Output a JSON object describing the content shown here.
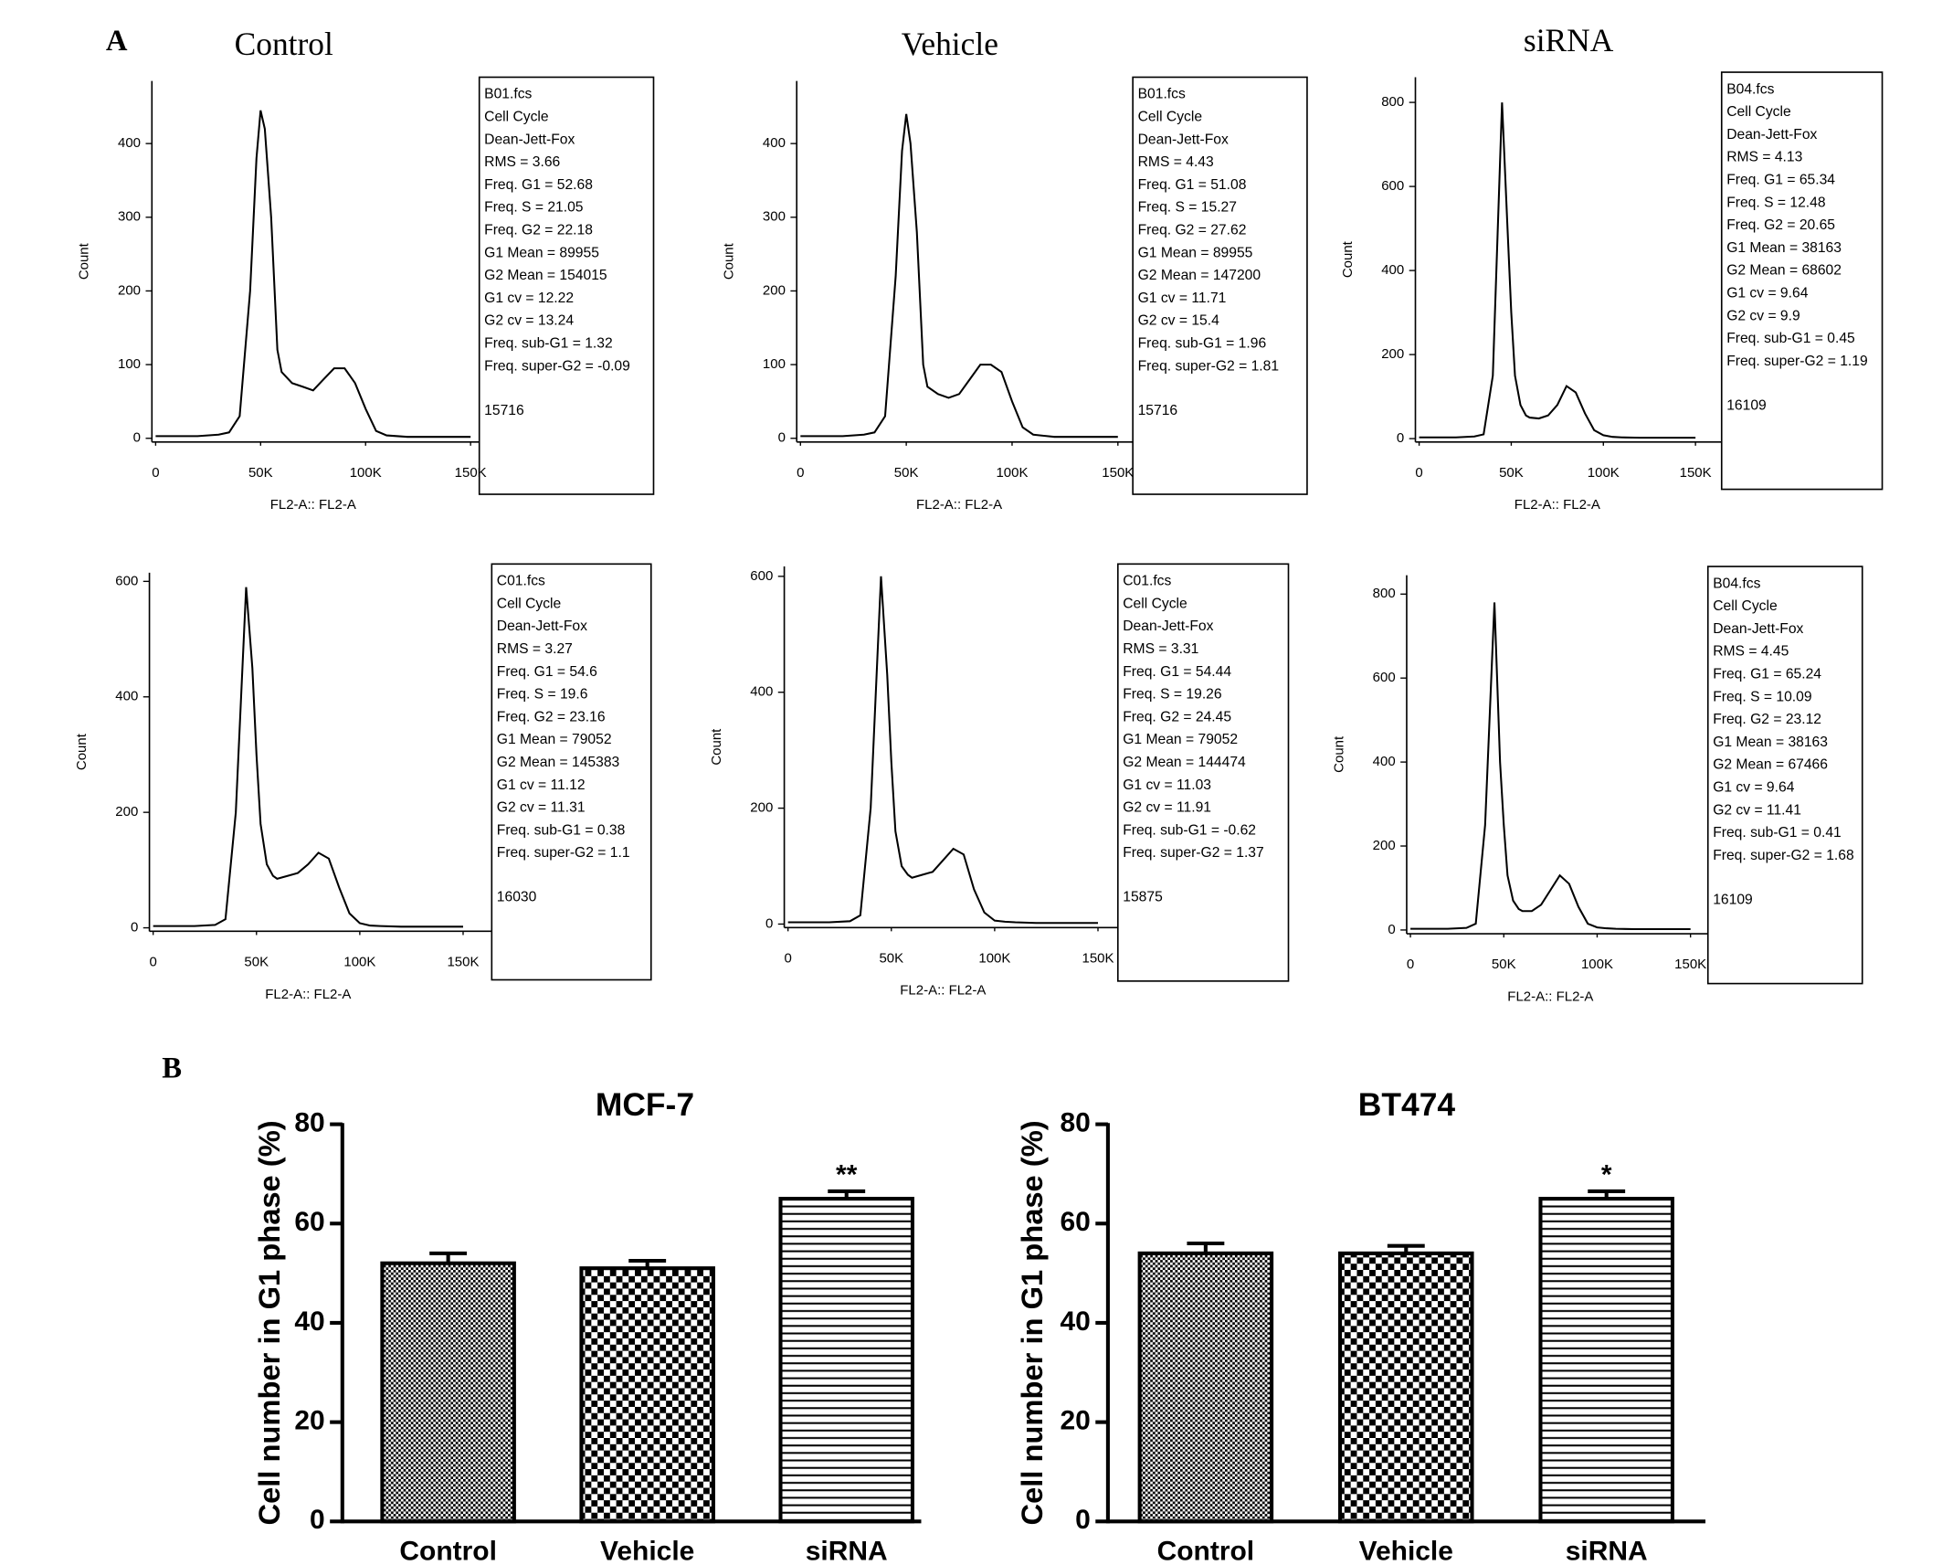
{
  "figure_labels": [
    "A",
    "B"
  ],
  "chart_data": [
    {
      "type": "line",
      "title": "Control",
      "xlabel": "FL2-A:: FL2-A",
      "ylabel": "Count",
      "x": [
        0,
        10000,
        20000,
        30000,
        35000,
        40000,
        45000,
        48000,
        50000,
        52000,
        55000,
        58000,
        60000,
        65000,
        70000,
        75000,
        80000,
        85000,
        90000,
        95000,
        100000,
        105000,
        110000,
        120000,
        130000,
        150000
      ],
      "series": [
        {
          "color": "#000000",
          "values": [
            3,
            3,
            3,
            5,
            8,
            30,
            200,
            380,
            445,
            420,
            300,
            120,
            90,
            75,
            70,
            65,
            80,
            95,
            95,
            75,
            40,
            10,
            4,
            2,
            2,
            2
          ]
        }
      ],
      "xlim": [
        0,
        150000
      ],
      "xticks": [
        0,
        {
          "value": 50000,
          "label": "50K"
        },
        {
          "value": 100000,
          "label": "100K"
        },
        {
          "value": 150000,
          "label": "150K"
        }
      ],
      "ylim": [
        -5,
        485
      ],
      "yticks": [
        0,
        100,
        200,
        300,
        400
      ],
      "annotations": [
        "B01.fcs",
        "Cell Cycle",
        "Dean-Jett-Fox",
        "RMS = 3.66",
        "Freq. G1 = 52.68",
        "Freq. S = 21.05",
        "Freq. G2 = 22.18",
        "G1 Mean = 89955",
        "G2 Mean = 154015",
        "G1 cv = 12.22",
        "G2 cv = 13.24",
        "Freq. sub-G1 = 1.32",
        "Freq. super-G2 = -0.09",
        "15716"
      ]
    },
    {
      "type": "line",
      "title": "Vehicle",
      "xlabel": "FL2-A:: FL2-A",
      "ylabel": "Count",
      "x": [
        0,
        10000,
        20000,
        30000,
        35000,
        40000,
        45000,
        48000,
        50000,
        52000,
        55000,
        58000,
        60000,
        65000,
        70000,
        75000,
        80000,
        85000,
        90000,
        95000,
        100000,
        105000,
        110000,
        120000,
        130000,
        150000
      ],
      "series": [
        {
          "color": "#000000",
          "values": [
            3,
            3,
            3,
            5,
            8,
            30,
            220,
            390,
            440,
            400,
            280,
            100,
            70,
            60,
            55,
            60,
            80,
            100,
            100,
            90,
            50,
            15,
            5,
            2,
            2,
            2
          ]
        }
      ],
      "xlim": [
        0,
        150000
      ],
      "xticks": [
        0,
        {
          "value": 50000,
          "label": "50K"
        },
        {
          "value": 100000,
          "label": "100K"
        },
        {
          "value": 150000,
          "label": "150K"
        }
      ],
      "ylim": [
        -5,
        485
      ],
      "yticks": [
        0,
        100,
        200,
        300,
        400
      ],
      "annotations": [
        "B01.fcs",
        "Cell Cycle",
        "Dean-Jett-Fox",
        "RMS = 4.43",
        "Freq. G1 = 51.08",
        "Freq. S = 15.27",
        "Freq. G2 = 27.62",
        "G1 Mean = 89955",
        "G2 Mean = 147200",
        "G1 cv = 11.71",
        "G2 cv = 15.4",
        "Freq. sub-G1 = 1.96",
        "Freq. super-G2 = 1.81",
        "15716"
      ]
    },
    {
      "type": "line",
      "title": "siRNA",
      "xlabel": "FL2-A:: FL2-A",
      "ylabel": "Count",
      "x": [
        0,
        10000,
        20000,
        30000,
        35000,
        40000,
        45000,
        48000,
        50000,
        52000,
        55000,
        58000,
        60000,
        65000,
        70000,
        75000,
        80000,
        85000,
        90000,
        95000,
        100000,
        105000,
        110000,
        120000,
        130000,
        150000
      ],
      "series": [
        {
          "color": "#000000",
          "values": [
            3,
            3,
            3,
            5,
            10,
            150,
            800,
            500,
            300,
            150,
            80,
            55,
            50,
            48,
            55,
            80,
            125,
            110,
            60,
            20,
            8,
            4,
            3,
            2,
            2,
            2
          ]
        }
      ],
      "xlim": [
        0,
        150000
      ],
      "xticks": [
        0,
        {
          "value": 50000,
          "label": "50K"
        },
        {
          "value": 100000,
          "label": "100K"
        },
        {
          "value": 150000,
          "label": "150K"
        }
      ],
      "ylim": [
        -8,
        860
      ],
      "yticks": [
        0,
        200,
        400,
        600,
        800
      ],
      "annotations": [
        "B04.fcs",
        "Cell Cycle",
        "Dean-Jett-Fox",
        "RMS = 4.13",
        "Freq. G1 = 65.34",
        "Freq. S = 12.48",
        "Freq. G2 = 20.65",
        "G1 Mean = 38163",
        "G2 Mean = 68602",
        "G1 cv = 9.64",
        "G2 cv = 9.9",
        "Freq. sub-G1 = 0.45",
        "Freq. super-G2 = 1.19",
        "16109"
      ]
    },
    {
      "type": "line",
      "xlabel": "FL2-A:: FL2-A",
      "ylabel": "Count",
      "x": [
        0,
        10000,
        20000,
        30000,
        35000,
        40000,
        45000,
        48000,
        50000,
        52000,
        55000,
        58000,
        60000,
        65000,
        70000,
        75000,
        80000,
        85000,
        90000,
        95000,
        100000,
        105000,
        110000,
        120000,
        130000,
        150000
      ],
      "series": [
        {
          "color": "#000000",
          "values": [
            3,
            3,
            3,
            5,
            15,
            200,
            590,
            450,
            300,
            180,
            110,
            90,
            85,
            90,
            95,
            110,
            130,
            120,
            70,
            25,
            8,
            4,
            3,
            2,
            2,
            2
          ]
        }
      ],
      "xlim": [
        0,
        150000
      ],
      "xticks": [
        0,
        {
          "value": 50000,
          "label": "50K"
        },
        {
          "value": 100000,
          "label": "100K"
        },
        {
          "value": 150000,
          "label": "150K"
        }
      ],
      "ylim": [
        -6,
        615
      ],
      "yticks": [
        0,
        200,
        400,
        600
      ],
      "annotations": [
        "C01.fcs",
        "Cell Cycle",
        "Dean-Jett-Fox",
        "RMS = 3.27",
        "Freq. G1 = 54.6",
        "Freq. S = 19.6",
        "Freq. G2 = 23.16",
        "G1 Mean = 79052",
        "G2 Mean = 145383",
        "G1 cv = 11.12",
        "G2 cv = 11.31",
        "Freq. sub-G1 = 0.38",
        "Freq. super-G2 = 1.1",
        "16030"
      ]
    },
    {
      "type": "line",
      "xlabel": "FL2-A:: FL2-A",
      "ylabel": "Count",
      "x": [
        0,
        10000,
        20000,
        30000,
        35000,
        40000,
        45000,
        48000,
        50000,
        52000,
        55000,
        58000,
        60000,
        65000,
        70000,
        75000,
        80000,
        85000,
        90000,
        95000,
        100000,
        105000,
        110000,
        120000,
        130000,
        150000
      ],
      "series": [
        {
          "color": "#000000",
          "values": [
            3,
            3,
            3,
            5,
            15,
            200,
            600,
            430,
            280,
            160,
            100,
            85,
            80,
            85,
            90,
            110,
            130,
            120,
            60,
            20,
            6,
            4,
            3,
            2,
            2,
            2
          ]
        }
      ],
      "xlim": [
        0,
        150000
      ],
      "xticks": [
        0,
        {
          "value": 50000,
          "label": "50K"
        },
        {
          "value": 100000,
          "label": "100K"
        },
        {
          "value": 150000,
          "label": "150K"
        }
      ],
      "ylim": [
        -6,
        617
      ],
      "yticks": [
        0,
        200,
        400,
        600
      ],
      "annotations": [
        "C01.fcs",
        "Cell Cycle",
        "Dean-Jett-Fox",
        "RMS = 3.31",
        "Freq. G1 = 54.44",
        "Freq. S = 19.26",
        "Freq. G2 = 24.45",
        "G1 Mean = 79052",
        "G2 Mean = 144474",
        "G1 cv = 11.03",
        "G2 cv = 11.91",
        "Freq. sub-G1 = -0.62",
        "Freq. super-G2 = 1.37",
        "15875"
      ]
    },
    {
      "type": "line",
      "xlabel": "FL2-A:: FL2-A",
      "ylabel": "Count",
      "x": [
        0,
        10000,
        20000,
        30000,
        35000,
        40000,
        45000,
        48000,
        50000,
        52000,
        55000,
        58000,
        60000,
        65000,
        70000,
        75000,
        80000,
        85000,
        90000,
        95000,
        100000,
        105000,
        110000,
        120000,
        130000,
        150000
      ],
      "series": [
        {
          "color": "#000000",
          "values": [
            3,
            3,
            3,
            5,
            15,
            250,
            780,
            400,
            250,
            130,
            70,
            50,
            45,
            45,
            60,
            95,
            130,
            110,
            55,
            15,
            6,
            4,
            3,
            2,
            2,
            2
          ]
        }
      ],
      "xlim": [
        0,
        150000
      ],
      "xticks": [
        0,
        {
          "value": 50000,
          "label": "50K"
        },
        {
          "value": 100000,
          "label": "100K"
        },
        {
          "value": 150000,
          "label": "150K"
        }
      ],
      "ylim": [
        -9,
        845
      ],
      "yticks": [
        0,
        200,
        400,
        600,
        800
      ],
      "annotations": [
        "B04.fcs",
        "Cell Cycle",
        "Dean-Jett-Fox",
        "RMS = 4.45",
        "Freq. G1 = 65.24",
        "Freq. S = 10.09",
        "Freq. G2 = 23.12",
        "G1 Mean = 38163",
        "G2 Mean = 67466",
        "G1 cv = 9.64",
        "G2 cv = 11.41",
        "Freq. sub-G1 = 0.41",
        "Freq. super-G2 = 1.68",
        "16109"
      ]
    },
    {
      "type": "bar",
      "title": "MCF-7",
      "ylabel": "Cell number in G1 phase (%)",
      "categories": [
        "Control",
        "Vehicle",
        "siRNA"
      ],
      "values": [
        52,
        51,
        65
      ],
      "errors": [
        2,
        1.5,
        1.5
      ],
      "significance": [
        null,
        null,
        "**"
      ],
      "ylim": [
        0,
        80
      ],
      "yticks": [
        0,
        20,
        40,
        60,
        80
      ]
    },
    {
      "type": "bar",
      "title": "BT474",
      "ylabel": "Cell number in G1 phase (%)",
      "categories": [
        "Control",
        "Vehicle",
        "siRNA"
      ],
      "values": [
        54,
        54,
        65
      ],
      "errors": [
        2,
        1.5,
        1.5
      ],
      "significance": [
        null,
        null,
        "*"
      ],
      "ylim": [
        0,
        80
      ],
      "yticks": [
        0,
        20,
        40,
        60,
        80
      ]
    }
  ]
}
